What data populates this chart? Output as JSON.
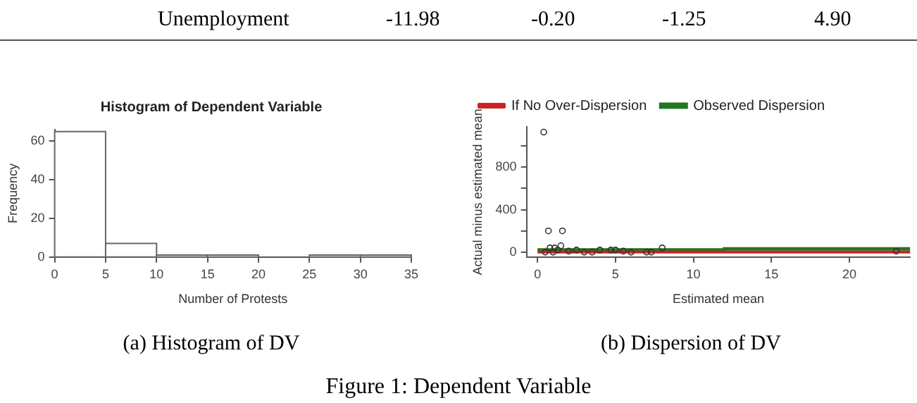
{
  "chart_data": [
    {
      "type": "other",
      "annotations": [
        "Unemployment",
        "-11.98",
        "-0.20",
        "-1.25",
        "4.90"
      ]
    },
    {
      "type": "histogram",
      "title": "Histogram of Dependent Variable",
      "xlabel": "Number of Protests",
      "ylabel": "Frequency",
      "bins": [
        0,
        5,
        10,
        15,
        20,
        25,
        30,
        35
      ],
      "values": [
        65,
        7,
        1,
        1,
        0,
        1,
        1
      ],
      "color": "#ffffff",
      "xlim": [
        0,
        35
      ],
      "xticks": [
        0,
        5,
        10,
        15,
        20,
        25,
        30,
        35
      ],
      "ylim": [
        0,
        66
      ],
      "yticks": [
        0,
        20,
        40,
        60
      ],
      "grid": false,
      "legend": false,
      "annotations": [
        "(a) Histogram of DV"
      ]
    },
    {
      "type": "scatter",
      "xlabel": "Estimated mean",
      "ylabel": "Actual minus estimated mean",
      "xlim": [
        -0.7,
        23.9
      ],
      "xticks": [
        0,
        5,
        10,
        15,
        20
      ],
      "ylim": [
        -46,
        1180
      ],
      "yticks": [
        0,
        {
          "value": 200,
          "label": null
        },
        400,
        {
          "value": 600,
          "label": null
        },
        800,
        {
          "value": 1000,
          "label": null
        }
      ],
      "grid": false,
      "legend": "top left",
      "annotations": [
        "(b) Dispersion of DV"
      ],
      "series": [
        {
          "type": "scatter",
          "color": "#333333",
          "marker": "circle",
          "x": [
            0.4,
            0.7,
            1.6,
            0.8,
            1.1,
            1.5,
            1.3,
            0.5,
            1.0,
            2.0,
            2.5,
            3.0,
            3.5,
            4.0,
            4.7,
            5.0,
            5.5,
            6.0,
            7.0,
            7.3,
            8.0,
            23.0
          ],
          "values": [
            1130,
            200,
            200,
            40,
            40,
            60,
            20,
            0,
            0,
            10,
            20,
            0,
            0,
            20,
            20,
            20,
            10,
            0,
            0,
            0,
            40,
            10
          ]
        },
        {
          "type": "line",
          "name": "If No Over-Dispersion",
          "color": "#cc2222",
          "x": [
            0,
            23.9
          ],
          "values": [
            0,
            0
          ]
        },
        {
          "type": "step",
          "name": "Observed Dispersion",
          "color": "#227722",
          "x": [
            0,
            12,
            18,
            23.9
          ],
          "values": [
            20,
            20,
            30,
            30
          ]
        }
      ]
    },
    {
      "type": "other",
      "annotations": [
        "Figure 1: Dependent Variable"
      ]
    }
  ]
}
